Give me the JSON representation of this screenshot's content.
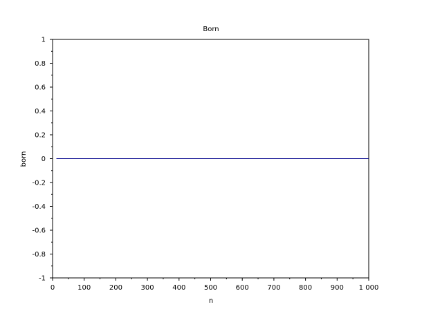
{
  "chart_data": {
    "type": "line",
    "title": "Born",
    "xlabel": "n",
    "ylabel": "born",
    "xlim": [
      0,
      1000
    ],
    "ylim": [
      -1,
      1
    ],
    "x_ticks": [
      0,
      100,
      200,
      300,
      400,
      500,
      600,
      700,
      800,
      900,
      1000
    ],
    "x_tick_labels": [
      "0",
      "100",
      "200",
      "300",
      "400",
      "500",
      "600",
      "700",
      "800",
      "900",
      "1 000"
    ],
    "y_ticks": [
      -1,
      -0.8,
      -0.6,
      -0.4,
      -0.2,
      0,
      0.2,
      0.4,
      0.6,
      0.8,
      1
    ],
    "y_tick_labels": [
      "-1",
      "-0.8",
      "-0.6",
      "-0.4",
      "-0.2",
      "0",
      "0.2",
      "0.4",
      "0.6",
      "0.8",
      "1"
    ],
    "grid": false,
    "series": [
      {
        "color": "#00008b",
        "x": [
          12,
          1000
        ],
        "y": [
          0,
          0
        ]
      }
    ]
  }
}
